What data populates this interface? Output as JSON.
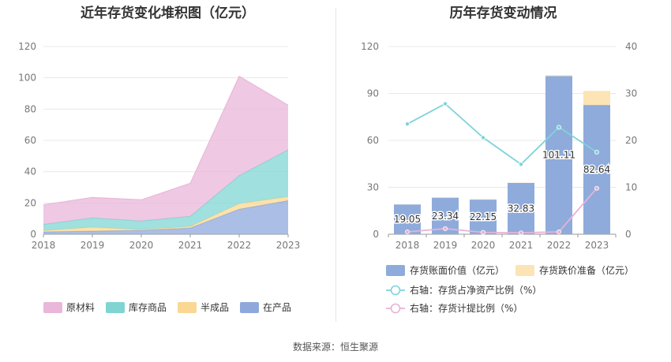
{
  "left_chart": {
    "title": "近年存货变化堆积图（亿元）"
  },
  "right_chart": {
    "title": "历年存货变动情况"
  },
  "source": "数据来源：恒生聚源",
  "chart_data": [
    {
      "type": "area",
      "stacked": true,
      "title": "近年存货变化堆积图（亿元）",
      "x": [
        "2018",
        "2019",
        "2020",
        "2021",
        "2022",
        "2023"
      ],
      "ylim": [
        0,
        120
      ],
      "yticks": [
        0,
        20,
        40,
        60,
        80,
        100,
        120
      ],
      "grid": true,
      "legend_position": "bottom",
      "series": [
        {
          "name": "在产品",
          "color": "#8fa8dc",
          "values": [
            1.5,
            2.0,
            2.5,
            4.0,
            16.0,
            21.5
          ]
        },
        {
          "name": "半成品",
          "color": "#fad893",
          "values": [
            0.8,
            2.5,
            0.5,
            1.0,
            3.5,
            2.5
          ]
        },
        {
          "name": "库存商品",
          "color": "#80d5d3",
          "values": [
            4.0,
            6.0,
            5.5,
            6.5,
            18.0,
            30.0
          ]
        },
        {
          "name": "原材料",
          "color": "#e9b7d9",
          "values": [
            12.5,
            13.0,
            13.5,
            21.0,
            63.5,
            28.5
          ]
        }
      ]
    },
    {
      "type": "bar",
      "stacked": true,
      "title": "历年存货变动情况",
      "categories": [
        "2018",
        "2019",
        "2020",
        "2021",
        "2022",
        "2023"
      ],
      "ylim": [
        0,
        120
      ],
      "yticks": [
        0,
        30,
        60,
        90,
        120
      ],
      "y2lim": [
        0,
        40
      ],
      "y2ticks": [
        0,
        10,
        20,
        30,
        40
      ],
      "grid": true,
      "legend_position": "bottom",
      "series": [
        {
          "name": "存货账面价值（亿元）",
          "color": "#8eabdb",
          "values": [
            19.05,
            23.34,
            22.15,
            32.83,
            101.11,
            82.64
          ],
          "labels": [
            "19.05",
            "23.34",
            "22.15",
            "32.83",
            "101.11",
            "82.64"
          ]
        },
        {
          "name": "存货跌价准备（亿元）",
          "color": "#fde4b5",
          "values": [
            0.1,
            0.3,
            0.2,
            0.1,
            0.6,
            9.0
          ]
        }
      ],
      "lines": [
        {
          "name": "右轴：存货占净资产比例（%）",
          "axis": "right",
          "color": "#7fd3da",
          "values": [
            23.5,
            27.8,
            20.6,
            14.9,
            22.8,
            17.5
          ]
        },
        {
          "name": "右轴：存货计提比例（%）",
          "axis": "right",
          "color": "#e6b3d6",
          "values": [
            0.5,
            1.2,
            0.4,
            0.3,
            0.5,
            9.8
          ]
        }
      ]
    }
  ]
}
